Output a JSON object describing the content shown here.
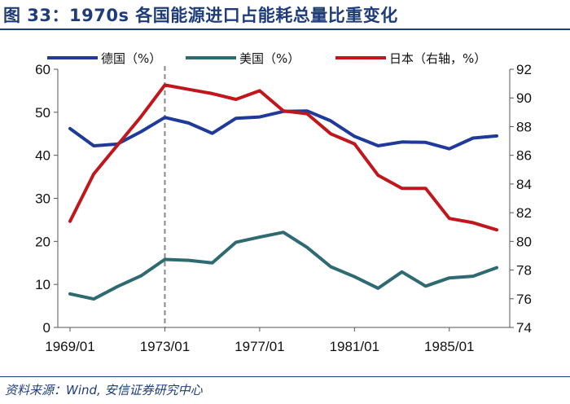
{
  "header": {
    "title": "图 33：1970s 各国能源进口占能耗总量比重变化"
  },
  "footer": {
    "source": "资料来源：Wind, 安信证券研究中心"
  },
  "chart_data": {
    "type": "line",
    "title": "1970s 各国能源进口占能耗总量比重变化",
    "x": [
      "1969/01",
      "1970/01",
      "1971/01",
      "1972/01",
      "1973/01",
      "1974/01",
      "1975/01",
      "1976/01",
      "1977/01",
      "1978/01",
      "1979/01",
      "1980/01",
      "1981/01",
      "1982/01",
      "1983/01",
      "1984/01",
      "1985/01",
      "1986/01",
      "1987/01"
    ],
    "xtick_labels": [
      "1969/01",
      "1973/01",
      "1977/01",
      "1981/01",
      "1985/01"
    ],
    "xtick_indices": [
      0,
      4,
      8,
      12,
      16
    ],
    "ylim_left": [
      0,
      60
    ],
    "yticks_left": [
      0,
      10,
      20,
      30,
      40,
      50,
      60
    ],
    "ylim_right": [
      74,
      92
    ],
    "yticks_right": [
      74,
      76,
      78,
      80,
      82,
      84,
      86,
      88,
      90,
      92
    ],
    "reference_line": {
      "x": "1973/01",
      "style": "dashed"
    },
    "series": [
      {
        "name": "德国（%）",
        "axis": "left",
        "color": "#1f3a9a",
        "values": [
          46.2,
          42.2,
          42.6,
          45.5,
          48.8,
          47.5,
          45.1,
          48.6,
          48.9,
          50.2,
          50.3,
          48.0,
          44.4,
          42.2,
          43.1,
          43.0,
          41.5,
          44.0,
          44.5
        ]
      },
      {
        "name": "美国（%）",
        "axis": "left",
        "color": "#2e6a70",
        "values": [
          7.8,
          6.6,
          9.5,
          12.0,
          15.8,
          15.6,
          15.0,
          19.8,
          21.0,
          22.1,
          18.6,
          14.1,
          11.8,
          9.1,
          12.9,
          9.6,
          11.5,
          11.9,
          13.9
        ]
      },
      {
        "name": "日本（右轴，%）",
        "axis": "right",
        "color": "#c0161c",
        "values": [
          81.4,
          84.7,
          86.7,
          88.7,
          90.9,
          90.6,
          90.3,
          89.9,
          90.5,
          89.1,
          88.9,
          87.5,
          86.8,
          84.6,
          83.7,
          83.7,
          81.6,
          81.3,
          80.8
        ]
      }
    ]
  }
}
